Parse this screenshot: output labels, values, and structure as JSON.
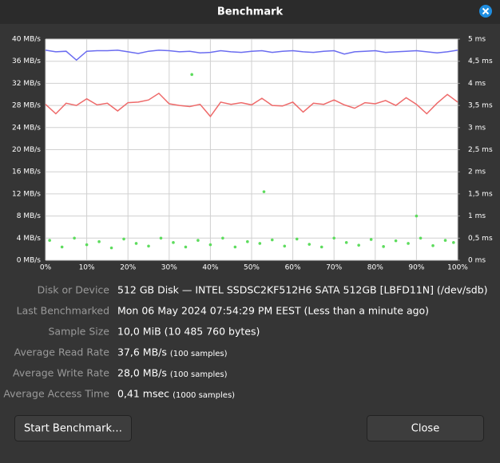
{
  "window": {
    "title": "Benchmark"
  },
  "chart_data": {
    "type": "line",
    "xlim": [
      0,
      100
    ],
    "ylim": [
      0,
      40
    ],
    "y2lim": [
      0,
      5
    ],
    "grid": true,
    "xticks": [
      {
        "value": 0,
        "label": "0%"
      },
      {
        "value": 10,
        "label": "10%"
      },
      {
        "value": 20,
        "label": "20%"
      },
      {
        "value": 30,
        "label": "30%"
      },
      {
        "value": 40,
        "label": "40%"
      },
      {
        "value": 50,
        "label": "50%"
      },
      {
        "value": 60,
        "label": "60%"
      },
      {
        "value": 70,
        "label": "70%"
      },
      {
        "value": 80,
        "label": "80%"
      },
      {
        "value": 90,
        "label": "90%"
      },
      {
        "value": 100,
        "label": "100%"
      }
    ],
    "yticks": [
      {
        "value": 0,
        "label": "0 MB/s"
      },
      {
        "value": 4,
        "label": "4 MB/s"
      },
      {
        "value": 8,
        "label": "8 MB/s"
      },
      {
        "value": 12,
        "label": "12 MB/s"
      },
      {
        "value": 16,
        "label": "16 MB/s"
      },
      {
        "value": 20,
        "label": "20 MB/s"
      },
      {
        "value": 24,
        "label": "24 MB/s"
      },
      {
        "value": 28,
        "label": "28 MB/s"
      },
      {
        "value": 32,
        "label": "32 MB/s"
      },
      {
        "value": 36,
        "label": "36 MB/s"
      },
      {
        "value": 40,
        "label": "40 MB/s"
      }
    ],
    "y2ticks": [
      {
        "value": 0,
        "label": "0 ms"
      },
      {
        "value": 0.5,
        "label": "0,5 ms"
      },
      {
        "value": 1,
        "label": "1 ms"
      },
      {
        "value": 1.5,
        "label": "1,5 ms"
      },
      {
        "value": 2,
        "label": "2 ms"
      },
      {
        "value": 2.5,
        "label": "2,5 ms"
      },
      {
        "value": 3,
        "label": "3 ms"
      },
      {
        "value": 3.5,
        "label": "3,5 ms"
      },
      {
        "value": 4,
        "label": "4 ms"
      },
      {
        "value": 4.5,
        "label": "4,5 ms"
      },
      {
        "value": 5,
        "label": "5 ms"
      }
    ],
    "series": [
      {
        "color": "#6a6cf0",
        "type": "line",
        "x": [
          0,
          2.5,
          5,
          7.5,
          10,
          12.5,
          15,
          17.5,
          20,
          22.5,
          25,
          27.5,
          30,
          32.5,
          35,
          37.5,
          40,
          42.5,
          45,
          47.5,
          50,
          52.5,
          55,
          57.5,
          60,
          62.5,
          65,
          67.5,
          70,
          72.5,
          75,
          77.5,
          80,
          82.5,
          85,
          87.5,
          90,
          92.5,
          95,
          97.5,
          100
        ],
        "values": [
          38.0,
          37.7,
          37.8,
          36.2,
          37.8,
          37.9,
          37.9,
          38.0,
          37.7,
          37.4,
          37.8,
          38.0,
          37.9,
          37.7,
          37.8,
          37.5,
          37.6,
          37.9,
          37.7,
          37.6,
          37.8,
          37.9,
          37.6,
          37.8,
          37.9,
          37.7,
          37.6,
          37.8,
          37.9,
          37.3,
          37.7,
          37.8,
          37.9,
          37.6,
          37.7,
          37.8,
          37.9,
          37.7,
          37.5,
          37.7,
          38.0
        ]
      },
      {
        "color": "#ee6a6a",
        "type": "line",
        "x": [
          0,
          2.5,
          5,
          7.5,
          10,
          12.5,
          15,
          17.5,
          20,
          22.5,
          25,
          27.5,
          30,
          32.5,
          35,
          37.5,
          40,
          42.5,
          45,
          47.5,
          50,
          52.5,
          55,
          57.5,
          60,
          62.5,
          65,
          67.5,
          70,
          72.5,
          75,
          77.5,
          80,
          82.5,
          85,
          87.5,
          90,
          92.5,
          95,
          97.5,
          100
        ],
        "values": [
          28.2,
          26.5,
          28.4,
          28.0,
          29.2,
          28.1,
          28.4,
          27.0,
          28.5,
          28.6,
          29.0,
          30.2,
          28.3,
          28.0,
          27.8,
          28.2,
          26.0,
          28.6,
          28.2,
          28.5,
          28.1,
          29.3,
          28.0,
          27.9,
          28.6,
          26.8,
          28.4,
          28.2,
          29.0,
          28.1,
          27.5,
          28.5,
          28.3,
          28.9,
          28.0,
          29.4,
          28.2,
          26.5,
          28.4,
          30.0,
          28.6
        ]
      },
      {
        "color": "#5ddc5d",
        "type": "scatter",
        "axis": "y2",
        "x": [
          1,
          4,
          7,
          10,
          13,
          16,
          19,
          22,
          25,
          28,
          31,
          34,
          35.5,
          37,
          40,
          43,
          46,
          49,
          52,
          53,
          55,
          58,
          61,
          64,
          67,
          70,
          73,
          76,
          79,
          82,
          85,
          88,
          90,
          91,
          94,
          97,
          99
        ],
        "values": [
          0.45,
          0.3,
          0.5,
          0.35,
          0.42,
          0.28,
          0.48,
          0.38,
          0.32,
          0.5,
          0.4,
          0.3,
          4.2,
          0.45,
          0.35,
          0.5,
          0.3,
          0.42,
          0.38,
          1.55,
          0.46,
          0.32,
          0.48,
          0.36,
          0.3,
          0.5,
          0.4,
          0.34,
          0.47,
          0.31,
          0.44,
          0.38,
          1.0,
          0.5,
          0.33,
          0.45,
          0.4
        ]
      }
    ]
  },
  "info": [
    {
      "label": "Disk or Device",
      "value": "512 GB Disk — INTEL SSDSC2KF512H6 SATA 512GB [LBFD11N] (/dev/sdb)"
    },
    {
      "label": "Last Benchmarked",
      "value": "Mon 06 May 2024 07:54:29 PM EEST (Less than a minute ago)"
    },
    {
      "label": "Sample Size",
      "value": "10,0 MiB (10 485 760 bytes)"
    },
    {
      "label": "Average Read Rate",
      "value": "37,6 MB/s",
      "note": "(100 samples)"
    },
    {
      "label": "Average Write Rate",
      "value": "28,0 MB/s",
      "note": "(100 samples)"
    },
    {
      "label": "Average Access Time",
      "value": "0,41 msec",
      "note": "(1000 samples)"
    }
  ],
  "buttons": {
    "start": "Start Benchmark…",
    "close": "Close"
  }
}
